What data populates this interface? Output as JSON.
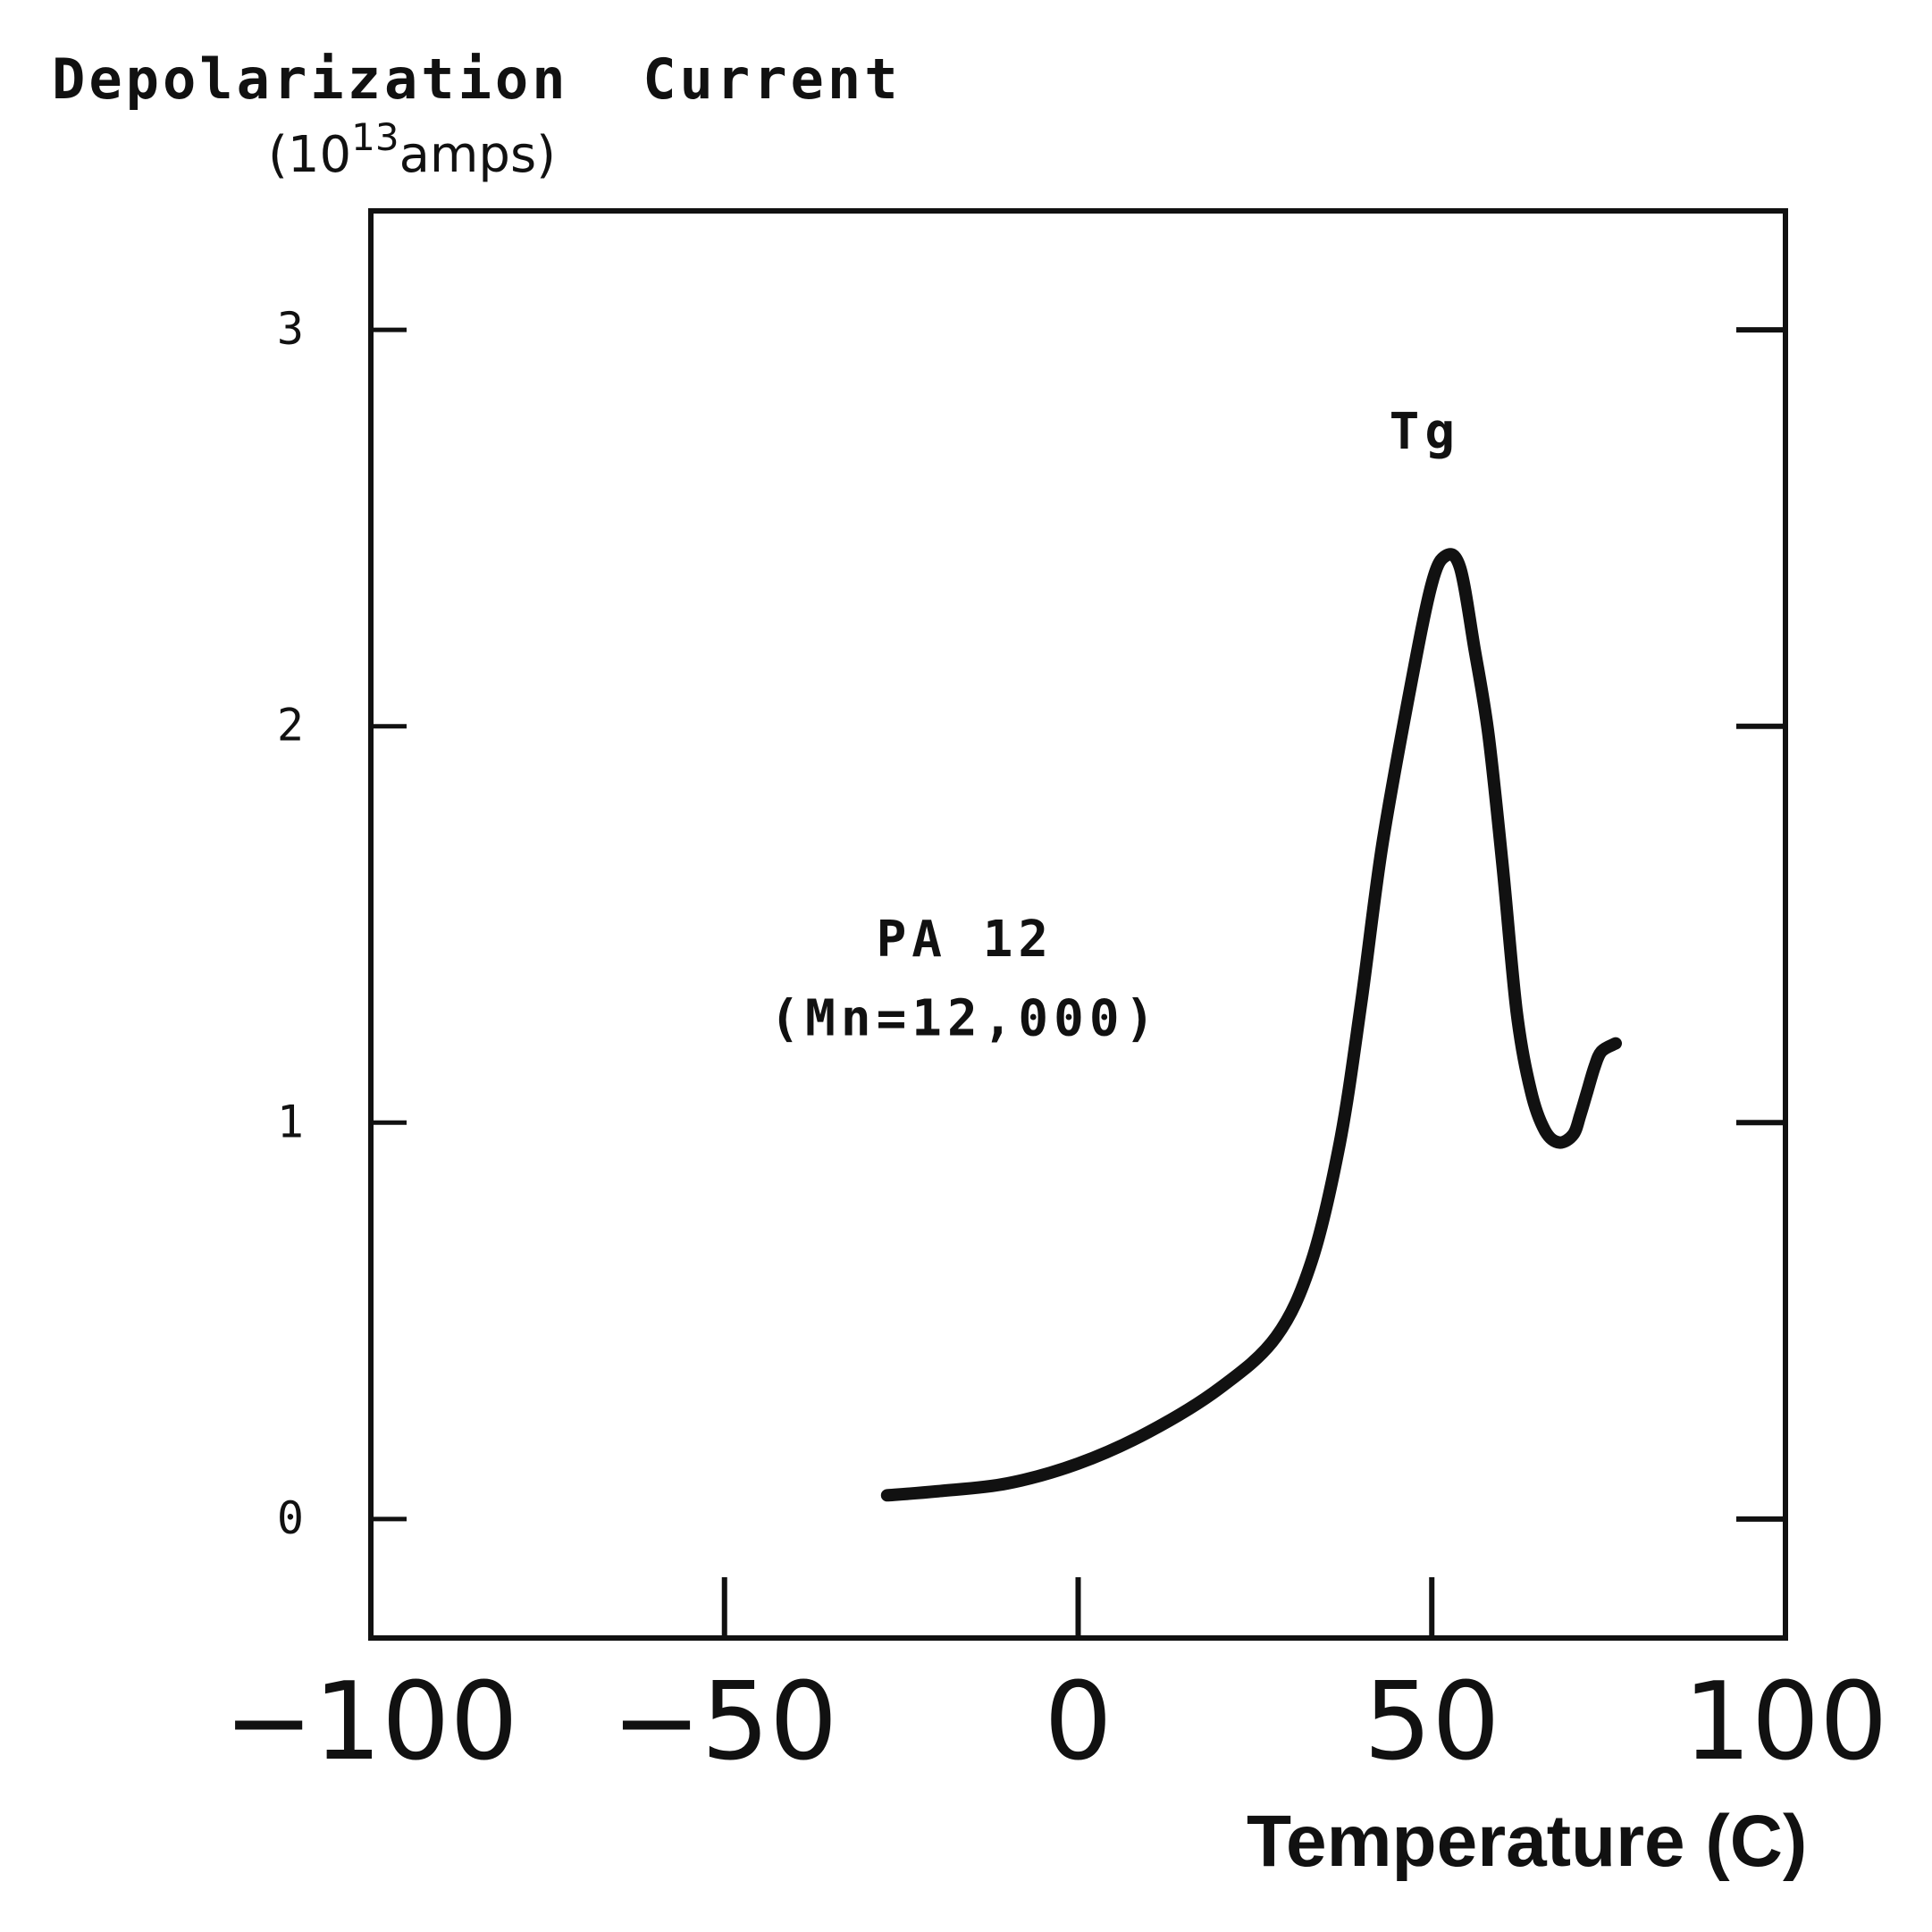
{
  "chart_data": {
    "type": "line",
    "ylabel_main": "Depolarization  Current",
    "ylabel_unit": {
      "prefix": "(10",
      "exponent": "13",
      "suffix": "amps)"
    },
    "xlabel": "Temperature (C)",
    "xlim": [
      -100,
      100
    ],
    "ylim": [
      -0.3,
      3.3
    ],
    "x_ticks": [
      -100,
      -50,
      0,
      50,
      100
    ],
    "x_tick_labels": [
      "−100",
      "−50",
      "0",
      "50",
      "100"
    ],
    "y_ticks": [
      0,
      1,
      2,
      3
    ],
    "y_tick_labels": [
      "0",
      "1",
      "2",
      "3"
    ],
    "grid": false,
    "series": [
      {
        "x": [
          -27,
          -20,
          -10,
          0,
          10,
          20,
          28,
          33,
          37,
          40,
          43,
          47,
          50,
          52,
          54,
          56,
          58,
          60,
          62,
          64,
          66,
          68,
          70,
          71,
          72,
          73,
          74,
          76
        ],
        "y": [
          0.06,
          0.07,
          0.09,
          0.14,
          0.22,
          0.33,
          0.46,
          0.65,
          0.95,
          1.3,
          1.7,
          2.1,
          2.36,
          2.43,
          2.4,
          2.2,
          1.98,
          1.65,
          1.28,
          1.08,
          0.98,
          0.95,
          0.97,
          1.02,
          1.08,
          1.14,
          1.18,
          1.2
        ]
      }
    ],
    "annotations": [
      {
        "text": "Tg",
        "x": 49,
        "y": 2.7
      },
      {
        "text": "PA  12",
        "x": -16,
        "y": 1.42
      },
      {
        "text": "(Mn=12,000)",
        "x": -16,
        "y": 1.22
      }
    ]
  }
}
